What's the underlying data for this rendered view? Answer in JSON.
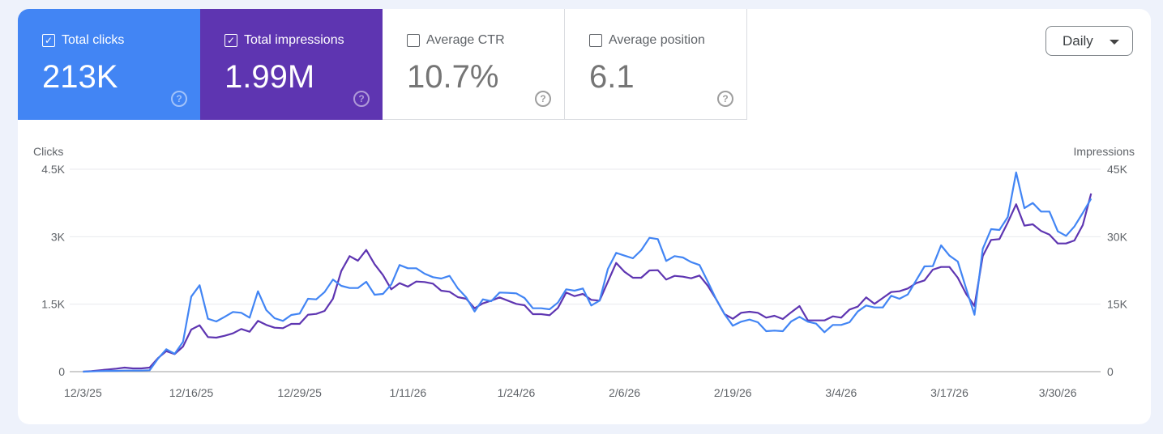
{
  "metrics": [
    {
      "label": "Total clicks",
      "value": "213K",
      "checked": true,
      "color": "#4285f4"
    },
    {
      "label": "Total impressions",
      "value": "1.99M",
      "checked": true,
      "color": "#5e35b1"
    },
    {
      "label": "Average CTR",
      "value": "10.7%",
      "checked": false
    },
    {
      "label": "Average position",
      "value": "6.1",
      "checked": false
    }
  ],
  "help_icon": "help-circle-icon",
  "granularity": {
    "label": "Daily",
    "icon": "caret-down-icon"
  },
  "chart_data": {
    "type": "line",
    "ylabel_left": "Clicks",
    "ylabel_right": "Impressions",
    "yticks_left": [
      "0",
      "1.5K",
      "3K",
      "4.5K"
    ],
    "yticks_right": [
      "0",
      "15K",
      "30K",
      "45K"
    ],
    "ylim_left": [
      0,
      4500
    ],
    "ylim_right": [
      0,
      45000
    ],
    "xticks": [
      "12/3/25",
      "12/16/25",
      "12/29/25",
      "1/11/26",
      "1/24/26",
      "2/6/26",
      "2/19/26",
      "3/4/26",
      "3/17/26",
      "3/30/26"
    ],
    "grid": true,
    "series": [
      {
        "name": "Clicks",
        "axis": "left",
        "color": "#4285f4",
        "values": [
          0,
          6,
          12,
          18,
          18,
          24,
          24,
          24,
          30,
          288,
          498,
          396,
          660,
          1668,
          1920,
          1176,
          1116,
          1218,
          1326,
          1308,
          1200,
          1788,
          1368,
          1188,
          1128,
          1260,
          1290,
          1620,
          1608,
          1770,
          2046,
          1908,
          1860,
          1860,
          1998,
          1710,
          1728,
          1938,
          2370,
          2298,
          2298,
          2178,
          2100,
          2070,
          2130,
          1848,
          1650,
          1338,
          1608,
          1566,
          1758,
          1752,
          1740,
          1638,
          1410,
          1410,
          1386,
          1536,
          1830,
          1800,
          1848,
          1470,
          1578,
          2280,
          2640,
          2580,
          2520,
          2700,
          2976,
          2946,
          2460,
          2568,
          2538,
          2436,
          2370,
          1998,
          1608,
          1278,
          1020,
          1110,
          1158,
          1098,
          900,
          912,
          900,
          1116,
          1218,
          1110,
          1068,
          876,
          1038,
          1038,
          1098,
          1338,
          1470,
          1428,
          1428,
          1686,
          1620,
          1716,
          2028,
          2340,
          2346,
          2808,
          2580,
          2448,
          1848,
          1266,
          2730,
          3168,
          3150,
          3438,
          4428,
          3636,
          3750,
          3558,
          3558,
          3120,
          3018,
          3228,
          3528,
          3846
        ]
      },
      {
        "name": "Impressions",
        "axis": "right",
        "color": "#5e35b1",
        "values": [
          0,
          120,
          300,
          480,
          660,
          900,
          720,
          720,
          900,
          3000,
          4560,
          3900,
          5580,
          9360,
          10320,
          7680,
          7560,
          7980,
          8520,
          9480,
          8880,
          11280,
          10380,
          9780,
          9660,
          10620,
          10620,
          12660,
          12840,
          13500,
          16200,
          22380,
          25680,
          24660,
          27060,
          23880,
          21480,
          18300,
          19680,
          18900,
          20040,
          19920,
          19560,
          18000,
          17760,
          16560,
          16200,
          14100,
          15180,
          15780,
          16500,
          15780,
          15060,
          14760,
          12780,
          12780,
          12540,
          14160,
          17580,
          16800,
          17280,
          15960,
          15780,
          19980,
          24180,
          22200,
          20880,
          20880,
          22500,
          22560,
          20460,
          21300,
          21120,
          20760,
          21360,
          19080,
          16080,
          12780,
          11760,
          13080,
          13320,
          13080,
          12000,
          12420,
          11700,
          13200,
          14580,
          11400,
          11400,
          11400,
          12300,
          12000,
          13800,
          14460,
          16500,
          15060,
          16380,
          17700,
          17880,
          18480,
          19680,
          20280,
          22680,
          23280,
          23280,
          20880,
          17280,
          14580,
          25680,
          29280,
          29460,
          33180,
          37200,
          32460,
          32760,
          31260,
          30480,
          28500,
          28500,
          29160,
          32580,
          39600
        ]
      }
    ]
  }
}
